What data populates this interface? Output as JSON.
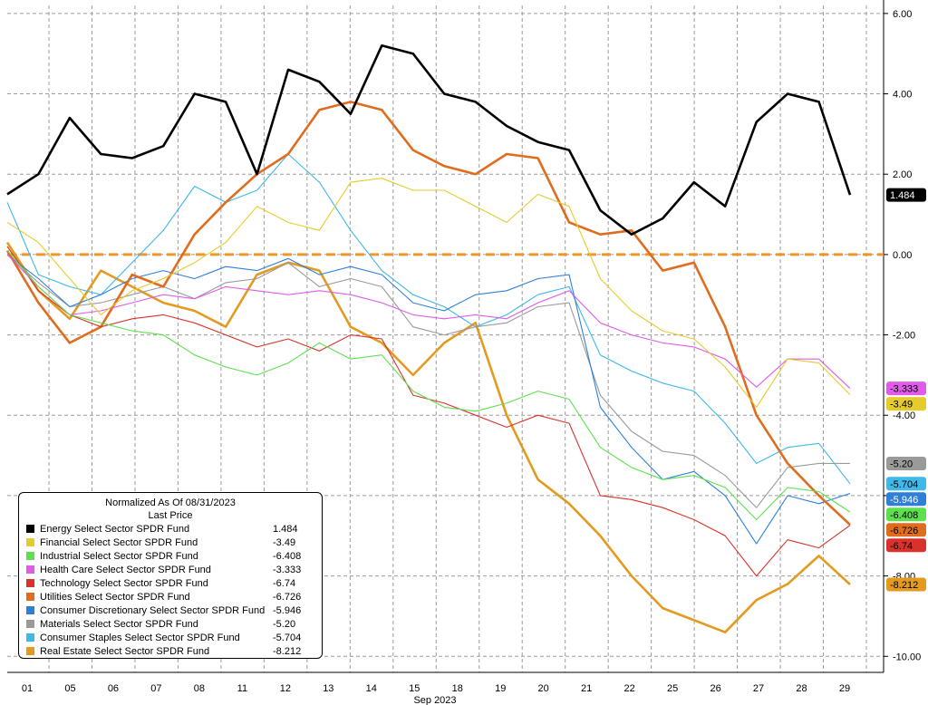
{
  "chart_data": {
    "type": "line",
    "legend_title": "Normalized As Of 08/31/2023",
    "legend_subtitle": "Last Price",
    "legend_position": "bottom-left",
    "xlabel": "Sep 2023",
    "x_ticks": [
      "01",
      "05",
      "06",
      "07",
      "08",
      "11",
      "12",
      "13",
      "14",
      "15",
      "18",
      "19",
      "20",
      "21",
      "22",
      "25",
      "26",
      "27",
      "28",
      "29"
    ],
    "y_ticks": [
      "6.00",
      "4.00",
      "2.00",
      "0.00",
      "-2.00",
      "-4.00",
      "-6.00",
      "-8.00",
      "-10.00"
    ],
    "ylim": [
      -10.4,
      6.2
    ],
    "grid": true,
    "reference_line": {
      "value": 0,
      "color": "#f0962a"
    },
    "series": [
      {
        "name": "Energy Select Sector SPDR Fund",
        "last": "1.484",
        "color": "#000000",
        "tag_text": "#ffffff",
        "values": [
          1.5,
          2.0,
          3.4,
          2.5,
          2.4,
          2.7,
          4.0,
          3.8,
          2.0,
          4.6,
          4.3,
          3.5,
          5.2,
          5.0,
          4.0,
          3.8,
          3.2,
          2.8,
          2.6,
          1.1,
          0.5,
          0.9,
          1.8,
          1.2,
          3.3,
          4.0,
          3.8,
          1.484
        ]
      },
      {
        "name": "Financial Select Sector SPDR Fund",
        "last": "-3.49",
        "color": "#e5cc2c",
        "tag_text": "#000000",
        "values": [
          0.8,
          0.3,
          -0.6,
          -1.5,
          -0.9,
          -0.6,
          -0.2,
          0.3,
          1.2,
          0.8,
          0.6,
          1.8,
          1.9,
          1.6,
          1.6,
          1.2,
          0.8,
          1.5,
          1.2,
          -0.6,
          -1.4,
          -1.9,
          -2.1,
          -2.8,
          -3.8,
          -2.6,
          -2.7,
          -3.49
        ]
      },
      {
        "name": "Industrial Select Sector SPDR Fund",
        "last": "-6.408",
        "color": "#5ee04e",
        "tag_text": "#000000",
        "values": [
          0.1,
          -0.8,
          -1.5,
          -1.7,
          -1.9,
          -2.0,
          -2.5,
          -2.8,
          -3.0,
          -2.7,
          -2.2,
          -2.6,
          -2.5,
          -3.4,
          -3.8,
          -3.9,
          -3.7,
          -3.4,
          -3.6,
          -4.8,
          -5.3,
          -5.6,
          -5.5,
          -5.8,
          -6.6,
          -5.8,
          -5.9,
          -6.408
        ]
      },
      {
        "name": "Health Care Select Sector SPDR Fund",
        "last": "-3.333",
        "color": "#e05ce8",
        "tag_text": "#000000",
        "values": [
          0.0,
          -0.8,
          -1.5,
          -1.4,
          -1.2,
          -1.0,
          -1.1,
          -0.8,
          -0.9,
          -1.0,
          -0.9,
          -1.0,
          -1.2,
          -1.5,
          -1.6,
          -1.5,
          -1.6,
          -1.2,
          -0.9,
          -1.7,
          -2.0,
          -2.2,
          -2.3,
          -2.6,
          -3.3,
          -2.6,
          -2.6,
          -3.333
        ]
      },
      {
        "name": "Technology Select Sector SPDR Fund",
        "last": "-6.74",
        "color": "#d9322c",
        "tag_text": "#000000",
        "values": [
          0.2,
          -0.9,
          -1.5,
          -1.8,
          -1.6,
          -1.5,
          -1.7,
          -2.0,
          -2.3,
          -2.1,
          -2.4,
          -2.0,
          -2.1,
          -3.5,
          -3.7,
          -4.0,
          -4.3,
          -4.0,
          -4.2,
          -6.0,
          -6.1,
          -6.3,
          -6.6,
          -7.0,
          -8.0,
          -7.1,
          -7.3,
          -6.74
        ]
      },
      {
        "name": "Utilities Select Sector SPDR Fund",
        "last": "-6.726",
        "color": "#e06c1e",
        "tag_text": "#000000",
        "values": [
          0.1,
          -1.2,
          -2.2,
          -1.8,
          -0.5,
          -0.8,
          0.5,
          1.3,
          2.0,
          2.5,
          3.6,
          3.8,
          3.6,
          2.6,
          2.2,
          2.0,
          2.5,
          2.4,
          0.8,
          0.5,
          0.6,
          -0.4,
          -0.2,
          -1.8,
          -4.0,
          -5.2,
          -6.0,
          -6.726
        ]
      },
      {
        "name": "Consumer Discretionary Select Sector SPDR Fund",
        "last": "-5.946",
        "color": "#2f7fd8",
        "tag_text": "#ffffff",
        "values": [
          0.0,
          -0.6,
          -1.3,
          -1.0,
          -0.6,
          -0.4,
          -0.6,
          -0.3,
          -0.4,
          -0.1,
          -0.5,
          -0.3,
          -0.5,
          -1.2,
          -1.4,
          -1.0,
          -0.9,
          -0.6,
          -0.5,
          -3.8,
          -4.8,
          -5.6,
          -5.4,
          -6.0,
          -7.2,
          -6.0,
          -6.2,
          -5.946
        ]
      },
      {
        "name": "Materials Select Sector SPDR Fund",
        "last": "-5.20",
        "color": "#9a9a9a",
        "tag_text": "#000000",
        "values": [
          0.0,
          -0.7,
          -1.3,
          -1.2,
          -1.0,
          -0.8,
          -1.1,
          -0.7,
          -0.6,
          -0.2,
          -0.8,
          -0.6,
          -0.8,
          -1.8,
          -2.0,
          -1.8,
          -1.7,
          -1.3,
          -1.2,
          -3.5,
          -4.4,
          -4.9,
          -5.0,
          -5.5,
          -6.3,
          -5.3,
          -5.2,
          -5.2
        ]
      },
      {
        "name": "Consumer Staples Select Sector SPDR Fund",
        "last": "-5.704",
        "color": "#3fb8ea",
        "tag_text": "#000000",
        "values": [
          1.3,
          -0.5,
          -0.8,
          -1.0,
          -0.2,
          0.6,
          1.7,
          1.3,
          1.6,
          2.5,
          1.8,
          0.6,
          -0.4,
          -1.0,
          -1.3,
          -1.8,
          -1.5,
          -1.0,
          -0.8,
          -2.5,
          -2.9,
          -3.2,
          -3.4,
          -4.2,
          -5.2,
          -4.8,
          -4.7,
          -5.704
        ]
      },
      {
        "name": "Real Estate Select Sector SPDR Fund",
        "last": "-8.212",
        "color": "#e39a1f",
        "tag_text": "#000000",
        "values": [
          0.3,
          -0.9,
          -1.6,
          -0.4,
          -0.8,
          -1.2,
          -1.4,
          -1.8,
          -0.5,
          -0.2,
          -0.4,
          -1.8,
          -2.2,
          -3.0,
          -2.2,
          -1.7,
          -4.0,
          -5.6,
          -6.2,
          -7.0,
          -8.0,
          -8.8,
          -9.1,
          -9.4,
          -8.6,
          -8.2,
          -7.5,
          -8.212
        ]
      }
    ]
  }
}
